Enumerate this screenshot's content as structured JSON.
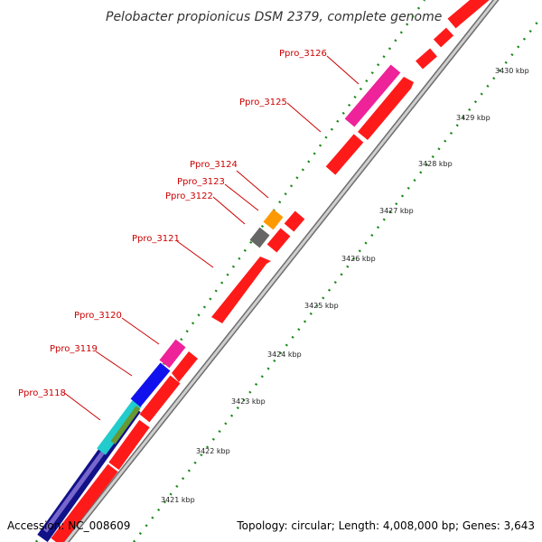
{
  "title": "Pelobacter propionicus DSM 2379, complete genome",
  "accession": "Accession: NC_008609",
  "topology": "Topology: circular; Length: 4,008,000 bp; Genes: 3,643",
  "colors": {
    "backbone": "#9a9a9a",
    "cds_red": "#ff1a1a",
    "dots": "#1a8a1a",
    "label": "#cc0000",
    "magenta": "#ee2299",
    "blue": "#1111ee",
    "cyan": "#22cccc",
    "olive": "#669933",
    "navy": "#111188",
    "lavender": "#7766cc",
    "orange": "#ff9900",
    "gray": "#666666"
  },
  "ticks": [
    {
      "label": "3421 kbp"
    },
    {
      "label": "3422 kbp"
    },
    {
      "label": "3423 kbp"
    },
    {
      "label": "3424 kbp"
    },
    {
      "label": "3425 kbp"
    },
    {
      "label": "3426 kbp"
    },
    {
      "label": "3427 kbp"
    },
    {
      "label": "3428 kbp"
    },
    {
      "label": "3429 kbp"
    },
    {
      "label": "3430 kbp"
    }
  ],
  "genes": [
    {
      "label": "Ppro_3118"
    },
    {
      "label": "Ppro_3119"
    },
    {
      "label": "Ppro_3120"
    },
    {
      "label": "Ppro_3121"
    },
    {
      "label": "Ppro_3122"
    },
    {
      "label": "Ppro_3123"
    },
    {
      "label": "Ppro_3124"
    },
    {
      "label": "Ppro_3125"
    },
    {
      "label": "Ppro_3126"
    }
  ]
}
